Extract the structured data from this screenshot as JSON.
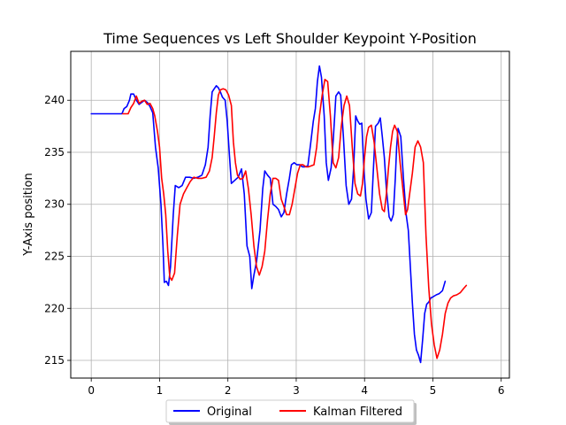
{
  "chart_data": {
    "type": "line",
    "title": "Time Sequences vs Left Shoulder Keypoint Y-Position",
    "xlabel": "",
    "ylabel": "Y-Axis position",
    "xlim": [
      -0.3,
      6.12
    ],
    "ylim": [
      213.3,
      244.7
    ],
    "xticks": [
      0,
      1,
      2,
      3,
      4,
      5,
      6
    ],
    "yticks": [
      215,
      220,
      225,
      230,
      235,
      240
    ],
    "grid": true,
    "legend_placement": "bottom-center",
    "series": [
      {
        "name": "Original",
        "color": "#0000ff",
        "points": [
          [
            0.0,
            238.7
          ],
          [
            0.45,
            238.7
          ],
          [
            0.48,
            239.2
          ],
          [
            0.52,
            239.4
          ],
          [
            0.56,
            240.0
          ],
          [
            0.58,
            240.6
          ],
          [
            0.62,
            240.6
          ],
          [
            0.66,
            240.0
          ],
          [
            0.7,
            239.6
          ],
          [
            0.74,
            239.8
          ],
          [
            0.78,
            240.0
          ],
          [
            0.82,
            239.8
          ],
          [
            0.86,
            239.4
          ],
          [
            0.9,
            238.8
          ],
          [
            0.94,
            235.5
          ],
          [
            0.98,
            233.5
          ],
          [
            1.02,
            230.0
          ],
          [
            1.05,
            226.0
          ],
          [
            1.07,
            222.5
          ],
          [
            1.1,
            222.6
          ],
          [
            1.13,
            222.2
          ],
          [
            1.16,
            224.0
          ],
          [
            1.2,
            229.0
          ],
          [
            1.23,
            231.8
          ],
          [
            1.28,
            231.6
          ],
          [
            1.33,
            231.8
          ],
          [
            1.38,
            232.6
          ],
          [
            1.44,
            232.6
          ],
          [
            1.5,
            232.5
          ],
          [
            1.56,
            232.6
          ],
          [
            1.62,
            232.8
          ],
          [
            1.67,
            233.8
          ],
          [
            1.71,
            235.5
          ],
          [
            1.74,
            238.5
          ],
          [
            1.77,
            240.8
          ],
          [
            1.8,
            241.1
          ],
          [
            1.83,
            241.4
          ],
          [
            1.86,
            241.2
          ],
          [
            1.89,
            240.8
          ],
          [
            1.92,
            240.3
          ],
          [
            1.96,
            240.0
          ],
          [
            1.99,
            238.0
          ],
          [
            2.02,
            235.0
          ],
          [
            2.05,
            232.0
          ],
          [
            2.1,
            232.3
          ],
          [
            2.15,
            232.6
          ],
          [
            2.2,
            233.4
          ],
          [
            2.24,
            231.0
          ],
          [
            2.28,
            226.0
          ],
          [
            2.32,
            225.0
          ],
          [
            2.35,
            221.9
          ],
          [
            2.38,
            223.2
          ],
          [
            2.42,
            224.5
          ],
          [
            2.47,
            227.5
          ],
          [
            2.51,
            231.5
          ],
          [
            2.54,
            233.2
          ],
          [
            2.58,
            232.8
          ],
          [
            2.62,
            232.5
          ],
          [
            2.66,
            230.0
          ],
          [
            2.7,
            229.8
          ],
          [
            2.74,
            229.5
          ],
          [
            2.78,
            228.8
          ],
          [
            2.82,
            229.2
          ],
          [
            2.86,
            231.0
          ],
          [
            2.9,
            232.5
          ],
          [
            2.93,
            233.8
          ],
          [
            2.97,
            234.0
          ],
          [
            3.01,
            233.8
          ],
          [
            3.05,
            233.8
          ],
          [
            3.09,
            233.6
          ],
          [
            3.13,
            233.6
          ],
          [
            3.17,
            233.7
          ],
          [
            3.21,
            235.8
          ],
          [
            3.25,
            238.0
          ],
          [
            3.28,
            239.2
          ],
          [
            3.31,
            241.8
          ],
          [
            3.34,
            243.3
          ],
          [
            3.37,
            242.2
          ],
          [
            3.41,
            238.5
          ],
          [
            3.44,
            234.0
          ],
          [
            3.47,
            232.3
          ],
          [
            3.51,
            233.5
          ],
          [
            3.54,
            236.0
          ],
          [
            3.58,
            240.4
          ],
          [
            3.62,
            240.8
          ],
          [
            3.65,
            240.5
          ],
          [
            3.69,
            236.5
          ],
          [
            3.73,
            231.8
          ],
          [
            3.77,
            230.0
          ],
          [
            3.81,
            230.5
          ],
          [
            3.84,
            233.5
          ],
          [
            3.87,
            238.5
          ],
          [
            3.9,
            238.0
          ],
          [
            3.93,
            237.7
          ],
          [
            3.96,
            237.8
          ],
          [
            3.99,
            233.5
          ],
          [
            4.02,
            230.5
          ],
          [
            4.06,
            228.6
          ],
          [
            4.1,
            229.2
          ],
          [
            4.13,
            233.5
          ],
          [
            4.16,
            237.5
          ],
          [
            4.2,
            237.8
          ],
          [
            4.23,
            238.3
          ],
          [
            4.26,
            236.5
          ],
          [
            4.29,
            234.5
          ],
          [
            4.32,
            231.5
          ],
          [
            4.36,
            228.8
          ],
          [
            4.39,
            228.4
          ],
          [
            4.42,
            229.0
          ],
          [
            4.45,
            232.5
          ],
          [
            4.47,
            235.5
          ],
          [
            4.49,
            237.3
          ],
          [
            4.53,
            236.5
          ],
          [
            4.57,
            232.5
          ],
          [
            4.61,
            229.0
          ],
          [
            4.64,
            227.5
          ],
          [
            4.67,
            224.0
          ],
          [
            4.7,
            220.5
          ],
          [
            4.73,
            217.5
          ],
          [
            4.76,
            216.0
          ],
          [
            4.79,
            215.5
          ],
          [
            4.82,
            214.8
          ],
          [
            4.85,
            217.0
          ],
          [
            4.88,
            219.5
          ],
          [
            4.91,
            220.4
          ],
          [
            4.94,
            220.6
          ],
          [
            4.97,
            221.0
          ],
          [
            5.0,
            221.1
          ],
          [
            5.05,
            221.3
          ],
          [
            5.09,
            221.4
          ],
          [
            5.14,
            221.7
          ],
          [
            5.18,
            222.6
          ]
        ]
      },
      {
        "name": "Kalman Filtered",
        "color": "#ff0000",
        "points": [
          [
            0.46,
            238.7
          ],
          [
            0.54,
            238.7
          ],
          [
            0.58,
            239.3
          ],
          [
            0.62,
            239.7
          ],
          [
            0.66,
            240.4
          ],
          [
            0.7,
            239.7
          ],
          [
            0.74,
            239.9
          ],
          [
            0.78,
            240.0
          ],
          [
            0.82,
            239.6
          ],
          [
            0.86,
            239.7
          ],
          [
            0.9,
            239.2
          ],
          [
            0.93,
            238.5
          ],
          [
            0.97,
            237.0
          ],
          [
            1.0,
            235.5
          ],
          [
            1.03,
            232.5
          ],
          [
            1.06,
            231.0
          ],
          [
            1.09,
            229.0
          ],
          [
            1.12,
            225.5
          ],
          [
            1.15,
            223.0
          ],
          [
            1.18,
            222.7
          ],
          [
            1.22,
            223.4
          ],
          [
            1.26,
            227.0
          ],
          [
            1.3,
            230.0
          ],
          [
            1.35,
            231.0
          ],
          [
            1.4,
            231.6
          ],
          [
            1.45,
            232.2
          ],
          [
            1.5,
            232.6
          ],
          [
            1.56,
            232.5
          ],
          [
            1.62,
            232.5
          ],
          [
            1.68,
            232.6
          ],
          [
            1.73,
            233.2
          ],
          [
            1.77,
            234.5
          ],
          [
            1.8,
            236.5
          ],
          [
            1.83,
            238.8
          ],
          [
            1.86,
            240.5
          ],
          [
            1.89,
            241.0
          ],
          [
            1.93,
            241.1
          ],
          [
            1.97,
            241.0
          ],
          [
            2.01,
            240.5
          ],
          [
            2.05,
            239.5
          ],
          [
            2.08,
            236.0
          ],
          [
            2.11,
            234.0
          ],
          [
            2.14,
            232.8
          ],
          [
            2.18,
            232.4
          ],
          [
            2.22,
            232.5
          ],
          [
            2.26,
            233.2
          ],
          [
            2.3,
            231.5
          ],
          [
            2.34,
            229.0
          ],
          [
            2.38,
            226.0
          ],
          [
            2.42,
            224.0
          ],
          [
            2.46,
            223.2
          ],
          [
            2.5,
            224.0
          ],
          [
            2.54,
            225.5
          ],
          [
            2.58,
            228.5
          ],
          [
            2.62,
            231.0
          ],
          [
            2.66,
            232.5
          ],
          [
            2.7,
            232.5
          ],
          [
            2.74,
            232.3
          ],
          [
            2.78,
            230.5
          ],
          [
            2.82,
            229.8
          ],
          [
            2.86,
            229.0
          ],
          [
            2.9,
            229.0
          ],
          [
            2.94,
            230.0
          ],
          [
            2.98,
            231.5
          ],
          [
            3.02,
            233.0
          ],
          [
            3.06,
            233.8
          ],
          [
            3.1,
            233.8
          ],
          [
            3.14,
            233.6
          ],
          [
            3.18,
            233.6
          ],
          [
            3.22,
            233.7
          ],
          [
            3.26,
            233.8
          ],
          [
            3.3,
            235.5
          ],
          [
            3.34,
            238.5
          ],
          [
            3.38,
            240.5
          ],
          [
            3.42,
            242.0
          ],
          [
            3.46,
            241.8
          ],
          [
            3.5,
            238.5
          ],
          [
            3.54,
            234.0
          ],
          [
            3.58,
            233.5
          ],
          [
            3.62,
            234.5
          ],
          [
            3.66,
            237.5
          ],
          [
            3.7,
            239.5
          ],
          [
            3.74,
            240.4
          ],
          [
            3.78,
            239.5
          ],
          [
            3.82,
            235.5
          ],
          [
            3.86,
            232.0
          ],
          [
            3.9,
            231.0
          ],
          [
            3.94,
            230.8
          ],
          [
            3.97,
            232.0
          ],
          [
            4.0,
            234.5
          ],
          [
            4.03,
            236.5
          ],
          [
            4.06,
            237.4
          ],
          [
            4.1,
            237.6
          ],
          [
            4.14,
            236.0
          ],
          [
            4.18,
            233.5
          ],
          [
            4.22,
            231.0
          ],
          [
            4.26,
            229.5
          ],
          [
            4.29,
            229.3
          ],
          [
            4.32,
            231.0
          ],
          [
            4.35,
            233.5
          ],
          [
            4.38,
            235.5
          ],
          [
            4.41,
            237.0
          ],
          [
            4.44,
            237.6
          ],
          [
            4.48,
            237.0
          ],
          [
            4.52,
            234.0
          ],
          [
            4.56,
            231.5
          ],
          [
            4.6,
            229.0
          ],
          [
            4.63,
            229.5
          ],
          [
            4.66,
            231.0
          ],
          [
            4.7,
            233.0
          ],
          [
            4.74,
            235.5
          ],
          [
            4.78,
            236.1
          ],
          [
            4.82,
            235.5
          ],
          [
            4.86,
            234.0
          ],
          [
            4.9,
            227.0
          ],
          [
            4.94,
            222.0
          ],
          [
            4.98,
            218.5
          ],
          [
            5.02,
            216.5
          ],
          [
            5.06,
            215.2
          ],
          [
            5.1,
            216.0
          ],
          [
            5.14,
            217.5
          ],
          [
            5.18,
            219.5
          ],
          [
            5.22,
            220.5
          ],
          [
            5.26,
            221.0
          ],
          [
            5.3,
            221.2
          ],
          [
            5.35,
            221.3
          ],
          [
            5.4,
            221.5
          ],
          [
            5.45,
            221.9
          ],
          [
            5.49,
            222.2
          ]
        ]
      }
    ]
  }
}
